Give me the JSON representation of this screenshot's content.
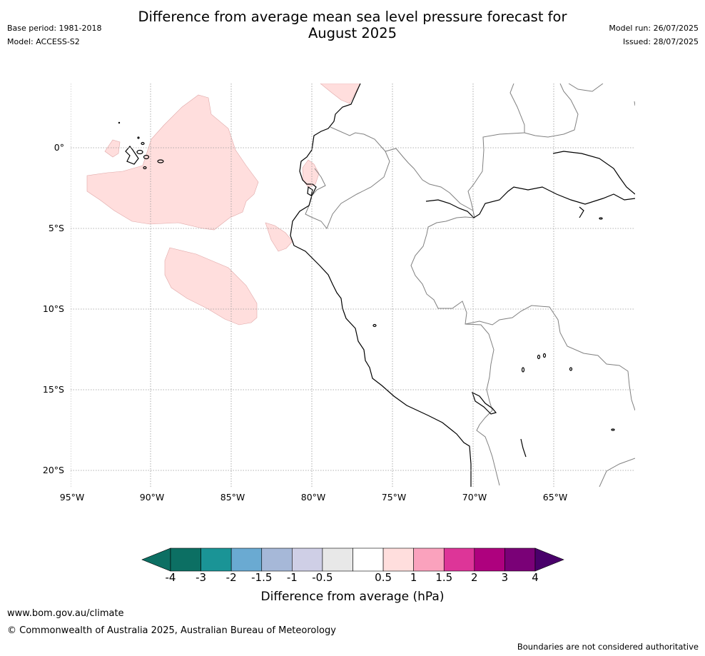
{
  "header": {
    "title_line1": "Difference from average mean sea level pressure forecast for",
    "title_line2": "August 2025",
    "base_period": "Base period: 1981-2018",
    "model": "Model: ACCESS-S2",
    "model_run": "Model run: 26/07/2025",
    "issued": "Issued: 28/07/2025"
  },
  "map": {
    "lat_labels": [
      "0°",
      "5°S",
      "10°S",
      "15°S",
      "20°S"
    ],
    "lon_labels": [
      "95°W",
      "90°W",
      "85°W",
      "80°W",
      "75°W",
      "70°W",
      "65°W"
    ],
    "anomaly_fill_color": "#ffdedd",
    "coast_color": "#000000",
    "border_color": "#808080"
  },
  "colorbar": {
    "title": "Difference from average (hPa)",
    "ticks": [
      "-4",
      "-3",
      "-2",
      "-1.5",
      "-1",
      "-0.5",
      "0.5",
      "1",
      "1.5",
      "2",
      "3",
      "4"
    ],
    "colors": [
      "#0c6f63",
      "#1a9496",
      "#6aaad2",
      "#a6b8d8",
      "#cfcfe6",
      "#e8e8e8",
      "#ffffff",
      "#ffdedd",
      "#faa2bd",
      "#dd3598",
      "#ae017e",
      "#7a0177"
    ],
    "under_color": "#0c6f63",
    "over_color": "#49006a"
  },
  "footer": {
    "url": "www.bom.gov.au/climate",
    "copyright": "© Commonwealth of Australia 2025, Australian Bureau of Meteorology",
    "note": "Boundaries are not considered authoritative"
  }
}
